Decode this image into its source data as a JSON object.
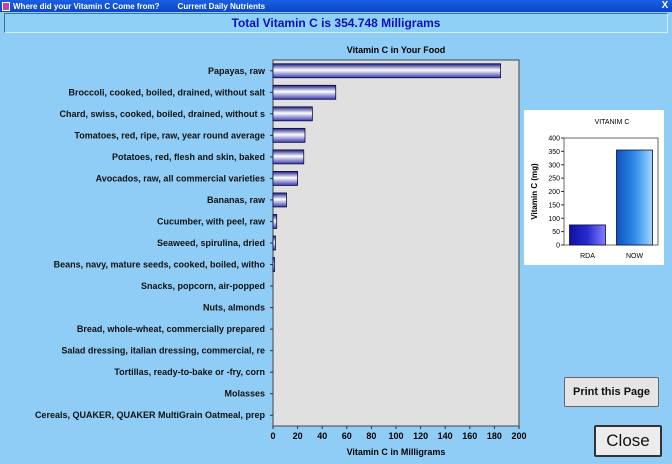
{
  "window": {
    "menu_items": [
      "Where did your Vitamin C Come from?",
      "Current Daily Nutrients"
    ],
    "close_glyph": "X"
  },
  "summary": {
    "total_text": "Total Vitamin C is 354.748 Milligrams"
  },
  "chart_data": [
    {
      "type": "bar",
      "orientation": "horizontal",
      "title": "Vitamin C in Your Food",
      "xlabel": "Vitamin C in Milligrams",
      "ylabel": "",
      "xlim": [
        0,
        200
      ],
      "xticks": [
        0,
        20,
        40,
        60,
        80,
        100,
        120,
        140,
        160,
        180,
        200
      ],
      "grid": false,
      "categories": [
        "Papayas, raw",
        "Broccoli, cooked, boiled, drained, without salt",
        "Chard, swiss, cooked, boiled, drained, without s",
        "Tomatoes, red, ripe, raw, year round average",
        "Potatoes, red, flesh and skin, baked",
        "Avocados, raw, all commercial varieties",
        "Bananas, raw",
        "Cucumber, with peel, raw",
        "Seaweed, spirulina, dried",
        "Beans, navy, mature seeds, cooked, boiled, witho",
        "Snacks, popcorn, air-popped",
        "Nuts, almonds",
        "Bread, whole-wheat, commercially prepared",
        "Salad dressing, italian dressing, commercial, re",
        "Tortillas, ready-to-bake or -fry, corn",
        "Molasses",
        "Cereals, QUAKER, QUAKER MultiGrain Oatmeal, prep"
      ],
      "values": [
        185,
        51,
        32,
        26,
        25,
        20,
        11,
        3,
        2,
        1.2,
        0,
        0,
        0,
        0,
        0,
        0,
        0
      ],
      "bar_color": "#3a3ab0",
      "background": "#e0e0e0"
    },
    {
      "type": "bar",
      "title": "VITANIM C",
      "xlabel": "",
      "ylabel": "Vitamin C (mg)",
      "ylim": [
        0,
        400
      ],
      "yticks": [
        0,
        50,
        100,
        150,
        200,
        250,
        300,
        350,
        400
      ],
      "categories": [
        "RDA",
        "NOW"
      ],
      "values": [
        75,
        355
      ],
      "bar_colors": [
        "#2a2ad0",
        "#2f8ae8"
      ]
    }
  ],
  "buttons": {
    "print_label": "Print this Page",
    "close_label": "Close"
  }
}
